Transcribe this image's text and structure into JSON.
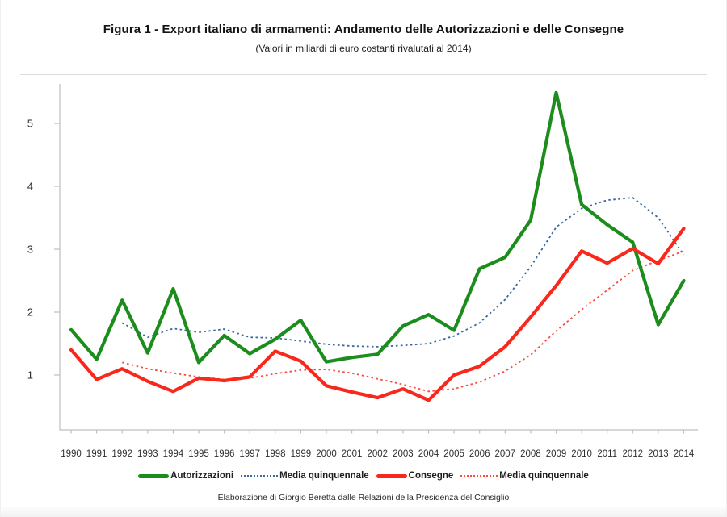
{
  "page": {
    "title": "Figura 1 - Export italiano di armamenti: Andamento delle Autorizzazioni e delle Consegne",
    "subtitle": "(Valori in miliardi di euro costanti rivalutati al 2014)",
    "footer": "Elaborazione di Giorgio Beretta dalle Relazioni della Presidenza del Consiglio"
  },
  "colors": {
    "autorizzazioni": "#1c8c1c",
    "consegne": "#f8281c",
    "media_autorizzazioni": "#39689f",
    "media_consegne": "#fb4b3e",
    "axis": "#bfbfbf",
    "tick_text": "#2e2e2e"
  },
  "legend": [
    {
      "label": "Autorizzazioni",
      "style": "solid",
      "color_key": "autorizzazioni"
    },
    {
      "label": "Media quinquennale",
      "style": "dotted",
      "color_key": "media_autorizzazioni"
    },
    {
      "label": "Consegne",
      "style": "solid",
      "color_key": "consegne"
    },
    {
      "label": "Media quinquennale",
      "style": "dotted",
      "color_key": "media_consegne"
    }
  ],
  "chart_data": {
    "type": "line",
    "title": "Figura 1 - Export italiano di armamenti: Andamento delle Autorizzazioni e delle Consegne",
    "subtitle": "(Valori in miliardi di euro costanti rivalutati al 2014)",
    "xlabel": "",
    "ylabel": "",
    "x": [
      1990,
      1991,
      1992,
      1993,
      1994,
      1995,
      1996,
      1997,
      1998,
      1999,
      2000,
      2001,
      2002,
      2003,
      2004,
      2005,
      2006,
      2007,
      2008,
      2009,
      2010,
      2011,
      2012,
      2013,
      2014
    ],
    "yticks": [
      1,
      2,
      3,
      4,
      5
    ],
    "ylim": [
      0.13,
      5.62
    ],
    "grid": false,
    "legend_position": "bottom",
    "series": [
      {
        "name": "Autorizzazioni",
        "style": "solid",
        "color_key": "autorizzazioni",
        "values": [
          1.72,
          1.25,
          2.19,
          1.35,
          2.37,
          1.2,
          1.63,
          1.34,
          1.57,
          1.87,
          1.21,
          1.28,
          1.33,
          1.78,
          1.96,
          1.71,
          2.69,
          2.87,
          3.46,
          5.49,
          3.71,
          3.39,
          3.11,
          1.8,
          2.5
        ]
      },
      {
        "name": "Media quinquennale (Autorizzazioni)",
        "style": "dotted",
        "color_key": "media_autorizzazioni",
        "values": [
          null,
          null,
          1.83,
          1.6,
          1.74,
          1.68,
          1.73,
          1.6,
          1.59,
          1.54,
          1.49,
          1.46,
          1.45,
          1.47,
          1.5,
          1.62,
          1.83,
          2.2,
          2.72,
          3.35,
          3.65,
          3.78,
          3.82,
          3.5,
          2.91
        ]
      },
      {
        "name": "Consegne",
        "style": "solid",
        "color_key": "consegne",
        "values": [
          1.4,
          0.93,
          1.1,
          0.9,
          0.74,
          0.95,
          0.91,
          0.97,
          1.38,
          1.22,
          0.83,
          0.73,
          0.64,
          0.78,
          0.6,
          1.0,
          1.14,
          1.45,
          1.92,
          2.42,
          2.97,
          2.78,
          3.01,
          2.77,
          3.33
        ]
      },
      {
        "name": "Media quinquennale (Consegne)",
        "style": "dotted",
        "color_key": "media_consegne",
        "values": [
          null,
          null,
          1.2,
          1.1,
          1.03,
          0.97,
          0.93,
          0.95,
          1.02,
          1.08,
          1.09,
          1.03,
          0.94,
          0.85,
          0.74,
          0.78,
          0.89,
          1.06,
          1.32,
          1.7,
          2.04,
          2.35,
          2.66,
          2.82,
          2.97
        ]
      }
    ]
  }
}
